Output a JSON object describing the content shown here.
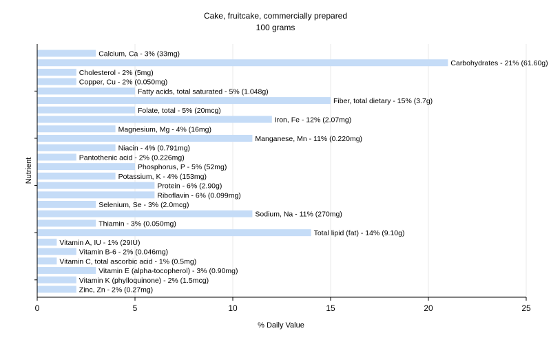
{
  "chart_data": {
    "type": "bar",
    "orientation": "horizontal",
    "title": "Cake, fruitcake, commercially prepared",
    "subtitle": "100 grams",
    "xlabel": "% Daily Value",
    "ylabel": "Nutrient",
    "xlim": [
      0,
      25
    ],
    "xticks": [
      0,
      5,
      10,
      15,
      20,
      25
    ],
    "grid": true,
    "bar_color": "#c5dcf7",
    "categories": [
      "Calcium, Ca",
      "Carbohydrates",
      "Cholesterol",
      "Copper, Cu",
      "Fatty acids, total saturated",
      "Fiber, total dietary",
      "Folate, total",
      "Iron, Fe",
      "Magnesium, Mg",
      "Manganese, Mn",
      "Niacin",
      "Pantothenic acid",
      "Phosphorus, P",
      "Potassium, K",
      "Protein",
      "Riboflavin",
      "Selenium, Se",
      "Sodium, Na",
      "Thiamin",
      "Total lipid (fat)",
      "Vitamin A, IU",
      "Vitamin B-6",
      "Vitamin C, total ascorbic acid",
      "Vitamin E (alpha-tocopherol)",
      "Vitamin K (phylloquinone)",
      "Zinc, Zn"
    ],
    "values": [
      3,
      21,
      2,
      2,
      5,
      15,
      5,
      12,
      4,
      11,
      4,
      2,
      5,
      4,
      6,
      6,
      3,
      11,
      3,
      14,
      1,
      2,
      1,
      3,
      2,
      2
    ],
    "labels": [
      "Calcium, Ca - 3% (33mg)",
      "Carbohydrates - 21% (61.60g)",
      "Cholesterol - 2% (5mg)",
      "Copper, Cu - 2% (0.050mg)",
      "Fatty acids, total saturated - 5% (1.048g)",
      "Fiber, total dietary - 15% (3.7g)",
      "Folate, total - 5% (20mcg)",
      "Iron, Fe - 12% (2.07mg)",
      "Magnesium, Mg - 4% (16mg)",
      "Manganese, Mn - 11% (0.220mg)",
      "Niacin - 4% (0.791mg)",
      "Pantothenic acid - 2% (0.226mg)",
      "Phosphorus, P - 5% (52mg)",
      "Potassium, K - 4% (153mg)",
      "Protein - 6% (2.90g)",
      "Riboflavin - 6% (0.099mg)",
      "Selenium, Se - 3% (2.0mcg)",
      "Sodium, Na - 11% (270mg)",
      "Thiamin - 3% (0.050mg)",
      "Total lipid (fat) - 14% (9.10g)",
      "Vitamin A, IU - 1% (29IU)",
      "Vitamin B-6 - 2% (0.046mg)",
      "Vitamin C, total ascorbic acid - 1% (0.5mg)",
      "Vitamin E (alpha-tocopherol) - 3% (0.90mg)",
      "Vitamin K (phylloquinone) - 2% (1.5mcg)",
      "Zinc, Zn - 2% (0.27mg)"
    ]
  }
}
